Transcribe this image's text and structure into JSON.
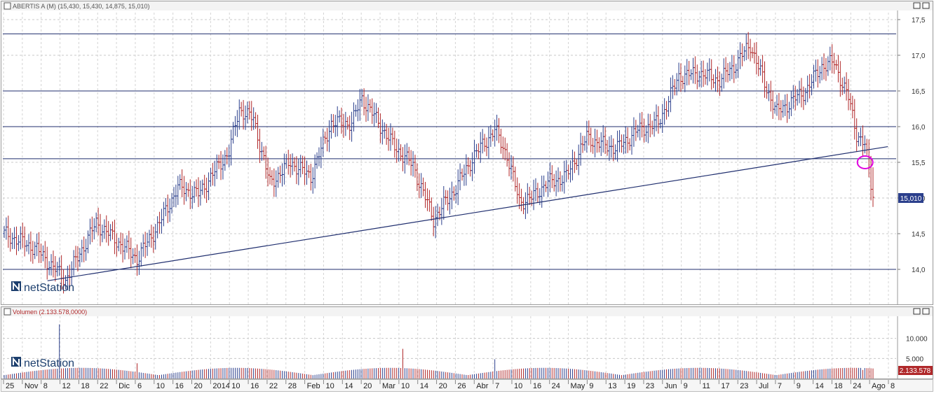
{
  "price_panel": {
    "title": "ABERTIS A (M) (15,430, 15,430, 14,875, 15,010)",
    "last_badge": "15,010",
    "logo_text": "netStation"
  },
  "volume_panel": {
    "title": "Volumen (2.133.578,0000)",
    "last_badge": "2.133.578",
    "logo_text": "netStation"
  },
  "colors": {
    "up": "#2b3f8c",
    "down": "#b0282a",
    "trend": "#1f2e6e",
    "highlight": "#e000e0",
    "badge": "#2b3f8c"
  },
  "chart_data": [
    {
      "type": "bar",
      "subtype": "ohlc",
      "title": "ABERTIS A (M) (15,430, 15,430, 14,875, 15,010)",
      "ylim": [
        13.5,
        17.5
      ],
      "y_ticks": [
        "14,0",
        "14,5",
        "15,0",
        "15,5",
        "16,0",
        "16,5",
        "17,0",
        "17,5"
      ],
      "grid": true,
      "last_value": "15,010",
      "horizontal_levels": [
        14.0,
        15.55,
        16.0,
        16.5,
        17.3
      ],
      "trend_line": [
        [
          0.048,
          13.84
        ],
        [
          0.9505,
          15.72
        ]
      ],
      "highlight_circle": [
        0.926,
        15.5
      ],
      "start_close": 14.5,
      "series_anchors": [
        [
          0,
          14.5
        ],
        [
          15,
          14.3
        ],
        [
          30,
          13.85
        ],
        [
          45,
          14.65
        ],
        [
          55,
          14.4
        ],
        [
          65,
          14.15
        ],
        [
          75,
          14.6
        ],
        [
          85,
          15.15
        ],
        [
          95,
          15.05
        ],
        [
          110,
          15.65
        ],
        [
          115,
          16.25
        ],
        [
          122,
          16.1
        ],
        [
          130,
          15.2
        ],
        [
          140,
          15.5
        ],
        [
          150,
          15.3
        ],
        [
          160,
          16.05
        ],
        [
          170,
          16.05
        ],
        [
          175,
          16.4
        ],
        [
          182,
          16.1
        ],
        [
          190,
          15.75
        ],
        [
          200,
          15.45
        ],
        [
          210,
          14.7
        ],
        [
          220,
          15.1
        ],
        [
          230,
          15.6
        ],
        [
          240,
          15.95
        ],
        [
          246,
          15.6
        ],
        [
          252,
          14.95
        ],
        [
          258,
          15.0
        ],
        [
          265,
          15.2
        ],
        [
          275,
          15.3
        ],
        [
          285,
          15.85
        ],
        [
          292,
          15.75
        ],
        [
          300,
          15.7
        ],
        [
          310,
          15.95
        ],
        [
          320,
          16.05
        ],
        [
          330,
          16.7
        ],
        [
          340,
          16.75
        ],
        [
          350,
          16.65
        ],
        [
          357,
          16.85
        ],
        [
          365,
          17.15
        ],
        [
          372,
          16.6
        ],
        [
          378,
          16.2
        ],
        [
          385,
          16.35
        ],
        [
          392,
          16.5
        ],
        [
          400,
          16.85
        ],
        [
          406,
          16.9
        ],
        [
          413,
          16.4
        ],
        [
          417,
          15.9
        ],
        [
          421,
          15.75
        ],
        [
          425,
          15.01
        ]
      ],
      "x_ticks": [
        "25",
        "Nov",
        "8",
        "12",
        "18",
        "22",
        "Dic",
        "6",
        "10",
        "16",
        "20",
        "2014",
        "10",
        "16",
        "22",
        "28",
        "Feb",
        "10",
        "14",
        "20",
        "Mar",
        "10",
        "14",
        "20",
        "26",
        "Abr",
        "7",
        "10",
        "16",
        "24",
        "May",
        "9",
        "13",
        "19",
        "23",
        "Jun",
        "9",
        "11",
        "17",
        "23",
        "Jul",
        "7",
        "9",
        "14",
        "18",
        "24",
        "Ago",
        "8"
      ]
    },
    {
      "type": "bar",
      "title": "Volumen (2.133.578,0000)",
      "ylim": [
        0,
        15000
      ],
      "y_ticks": [
        "5.000",
        "10.000"
      ],
      "grid": true,
      "last_value": "2.133.578",
      "baseline_volume": 1400,
      "spikes": [
        [
          27,
          13500
        ],
        [
          65,
          3800
        ],
        [
          195,
          7400
        ],
        [
          240,
          4800
        ],
        [
          420,
          2133.578
        ]
      ]
    }
  ]
}
